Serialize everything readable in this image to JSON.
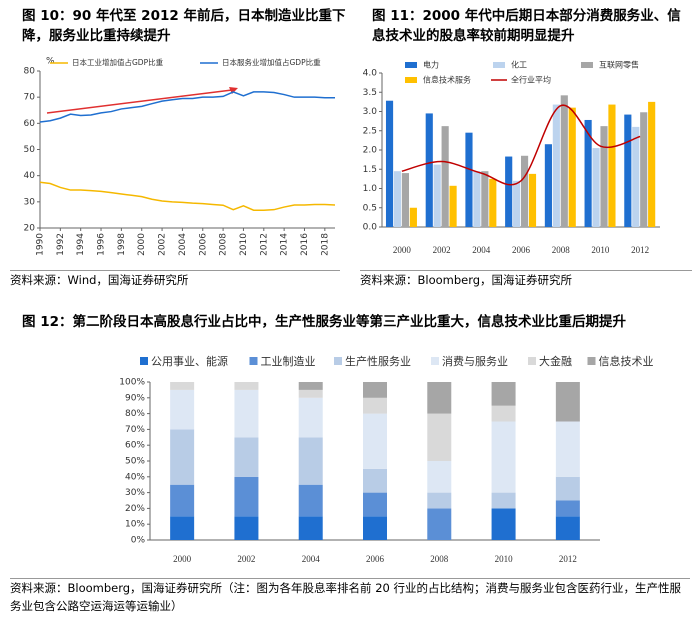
{
  "chart_data": [
    {
      "type": "line",
      "title": "图 10：90 年代至 2012 年前后，日本制造业比重下降，服务业比重持续提升",
      "ylabel": "%",
      "x": [
        1990,
        1991,
        1992,
        1993,
        1994,
        1995,
        1996,
        1997,
        1998,
        1999,
        2000,
        2001,
        2002,
        2003,
        2004,
        2005,
        2006,
        2007,
        2008,
        2009,
        2010,
        2011,
        2012,
        2013,
        2014,
        2015,
        2016,
        2017,
        2018,
        2019
      ],
      "series": [
        {
          "name": "日本工业增加值占GDP比重",
          "color": "#f5b800",
          "values": [
            37.5,
            37,
            35.5,
            34.5,
            34.5,
            34.3,
            34,
            33.5,
            33,
            32.5,
            32,
            31,
            30.3,
            30,
            29.8,
            29.5,
            29.3,
            29,
            28.7,
            27,
            28.5,
            26.8,
            26.8,
            27,
            28,
            28.8,
            28.8,
            29,
            29,
            28.8
          ]
        },
        {
          "name": "日本服务业增加值占GDP比重",
          "color": "#1f6fd0",
          "values": [
            60.5,
            61,
            62,
            63.5,
            63,
            63.2,
            64,
            64.5,
            65.5,
            66,
            66.5,
            67.5,
            68.5,
            69,
            69.5,
            69.5,
            70,
            70,
            70.3,
            72,
            70.5,
            72,
            72,
            71.8,
            71,
            70,
            70,
            70,
            69.8,
            69.8
          ]
        }
      ],
      "xlim": [
        1990,
        2019
      ],
      "xticks": [
        1990,
        1992,
        1994,
        1996,
        1998,
        2000,
        2002,
        2004,
        2006,
        2008,
        2010,
        2012,
        2014,
        2016,
        2018
      ],
      "ylim": [
        20,
        80
      ],
      "yticks": [
        20,
        30,
        40,
        50,
        60,
        70,
        80
      ],
      "legend": "top",
      "grid": false
    },
    {
      "type": "bar",
      "title": "图 11：2000 年代中后期日本部分消费服务业、信息技术业的股息率较前期明显提升",
      "categories": [
        "2000",
        "2002",
        "2004",
        "2006",
        "2008",
        "2010",
        "2012"
      ],
      "series": [
        {
          "name": "电力",
          "color": "#1f6fd0",
          "values": [
            3.28,
            2.95,
            2.45,
            1.83,
            2.15,
            2.78,
            2.92
          ]
        },
        {
          "name": "化工",
          "color": "#bcd3ee",
          "values": [
            1.45,
            1.62,
            1.45,
            1.2,
            3.18,
            2.05,
            2.6
          ]
        },
        {
          "name": "互联网零售",
          "color": "#a6a6a6",
          "values": [
            1.4,
            2.62,
            1.45,
            1.85,
            3.42,
            2.62,
            2.98
          ]
        },
        {
          "name": "信息技术服务",
          "color": "#ffc000",
          "values": [
            0.5,
            1.07,
            1.25,
            1.38,
            3.1,
            3.18,
            3.25
          ]
        },
        {
          "name": "全行业平均",
          "color": "#c00000",
          "type": "line",
          "values": [
            1.45,
            1.7,
            1.4,
            1.2,
            3.15,
            2.1,
            2.35
          ]
        }
      ],
      "ylim": [
        0,
        4
      ],
      "yticks": [
        {
          "value": 0,
          "label": "0.0"
        },
        0.5,
        {
          "value": 1,
          "label": "1.0"
        },
        1.5,
        {
          "value": 2,
          "label": "2.0"
        },
        2.5,
        {
          "value": 3,
          "label": "3.0"
        },
        3.5,
        {
          "value": 4,
          "label": "4.0"
        }
      ],
      "legend": "top",
      "grid": false
    },
    {
      "type": "stacked_bar",
      "title": "图 12：第二阶段日本高股息行业占比中，生产性服务业等第三产业比重大，信息技术业比重后期提升",
      "categories": [
        "2000",
        "2002",
        "2004",
        "2006",
        "2008",
        "2010",
        "2012"
      ],
      "series": [
        {
          "name": "公用事业、能源",
          "color": "#1f6fd0",
          "values": [
            15,
            15,
            15,
            15,
            0,
            20,
            15
          ]
        },
        {
          "name": "工业制造业",
          "color": "#5b8fd6",
          "values": [
            20,
            25,
            20,
            15,
            20,
            0,
            10
          ]
        },
        {
          "name": "生产性服务业",
          "color": "#b8cce6",
          "values": [
            35,
            25,
            30,
            15,
            10,
            10,
            15
          ]
        },
        {
          "name": "消费与服务业",
          "color": "#dde7f4",
          "values": [
            25,
            30,
            25,
            35,
            20,
            45,
            35
          ]
        },
        {
          "name": "大金融",
          "color": "#d9d9d9",
          "values": [
            5,
            5,
            5,
            10,
            30,
            10,
            0
          ]
        },
        {
          "name": "信息技术业",
          "color": "#a6a6a6",
          "values": [
            0,
            0,
            5,
            10,
            20,
            15,
            25
          ]
        }
      ],
      "ylim": [
        0,
        100
      ],
      "yticks": [
        {
          "value": 0,
          "label": "0%"
        },
        {
          "value": 10,
          "label": "10%"
        },
        {
          "value": 20,
          "label": "20%"
        },
        {
          "value": 30,
          "label": "30%"
        },
        {
          "value": 40,
          "label": "40%"
        },
        {
          "value": 50,
          "label": "50%"
        },
        {
          "value": 60,
          "label": "60%"
        },
        {
          "value": 70,
          "label": "70%"
        },
        {
          "value": 80,
          "label": "80%"
        },
        {
          "value": 90,
          "label": "90%"
        },
        {
          "value": 100,
          "label": "100%"
        }
      ],
      "legend": "top",
      "grid": false
    }
  ],
  "sources": [
    "资料来源：Wind，国海证券研究所",
    "资料来源：Bloomberg，国海证券研究所",
    "资料来源：Bloomberg，国海证券研究所（注：图为各年股息率排名前 20 行业的占比结构；消费与服务业包含医药行业，生产性服务业包含公路空运海运等运输业）"
  ]
}
